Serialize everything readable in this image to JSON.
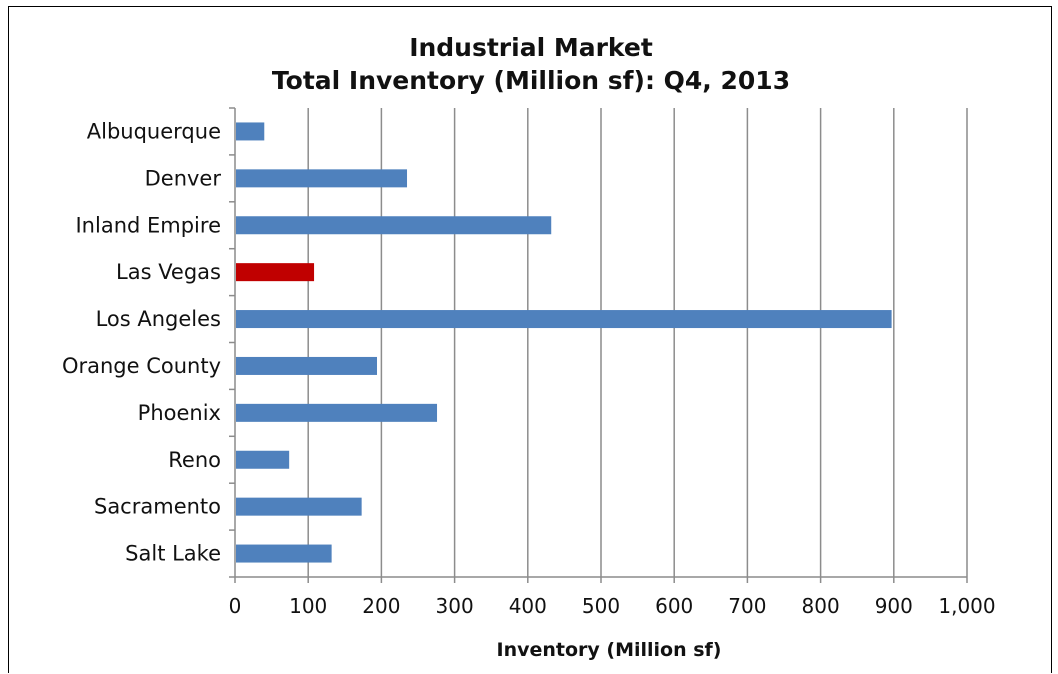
{
  "chart_data": {
    "type": "bar",
    "orientation": "horizontal",
    "title": "Industrial Market",
    "subtitle": "Total Inventory (Million sf): Q4, 2013",
    "xlabel": "Inventory (Million sf)",
    "ylabel": "",
    "xlim": [
      0,
      1000
    ],
    "x_ticks": [
      "0",
      "100",
      "200",
      "300",
      "400",
      "500",
      "600",
      "700",
      "800",
      "900",
      "1,000"
    ],
    "categories": [
      "Albuquerque",
      "Denver",
      "Inland Empire",
      "Las Vegas",
      "Los Angeles",
      "Orange County",
      "Phoenix",
      "Reno",
      "Sacramento",
      "Salt Lake"
    ],
    "values": [
      40,
      235,
      432,
      108,
      897,
      194,
      276,
      74,
      173,
      132
    ],
    "highlight": {
      "category": "Las Vegas",
      "color": "#C00000"
    },
    "bar_color": "#4F81BD",
    "grid": "vertical",
    "gridline_color": "#8C8C8C",
    "legend": "none"
  }
}
